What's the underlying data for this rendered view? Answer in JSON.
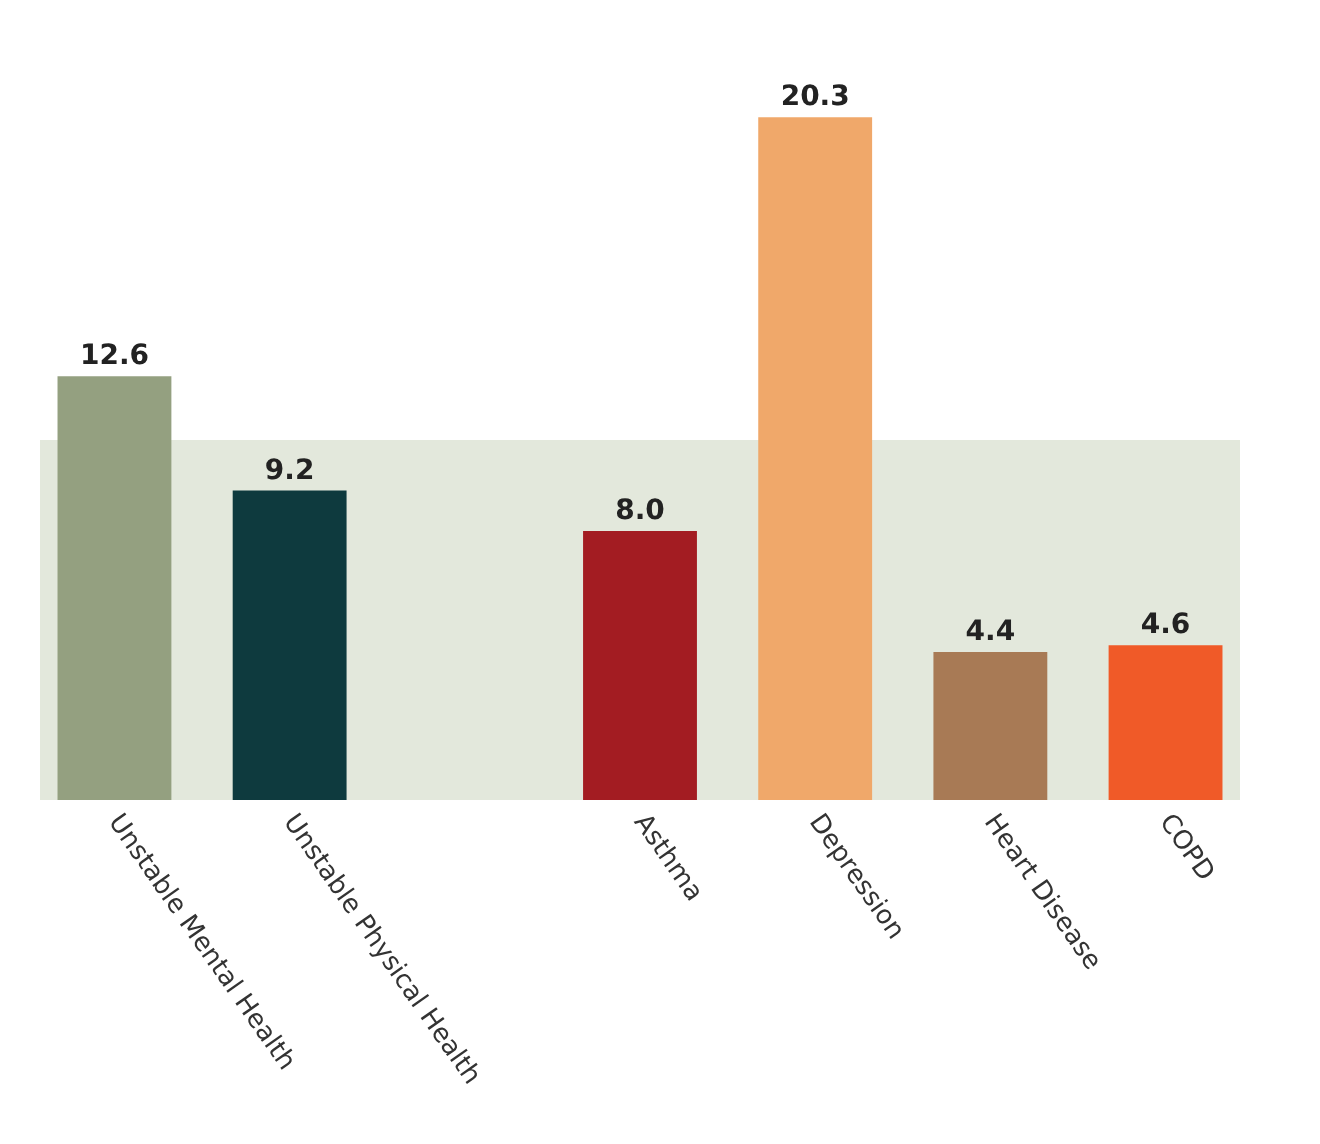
{
  "chart_data": {
    "type": "bar",
    "categories": [
      "Unstable Mental Health",
      "Unstable Physical Health",
      null,
      "Asthma",
      "Depression",
      "Heart Disease",
      "COPD"
    ],
    "values": [
      12.6,
      9.2,
      null,
      8.0,
      20.3,
      4.4,
      4.6
    ],
    "colors": [
      "#94a080",
      "#0e3a3e",
      null,
      "#a31c22",
      "#f0a86a",
      "#a87a55",
      "#f05a28"
    ],
    "value_labels": [
      "12.6",
      "9.2",
      null,
      "8.0",
      "20.3",
      "4.4",
      "4.6"
    ],
    "bands": [
      {
        "axis": "y",
        "from": 0,
        "to": 10.7,
        "color": "#e3e8dc"
      }
    ],
    "legend": false
  }
}
